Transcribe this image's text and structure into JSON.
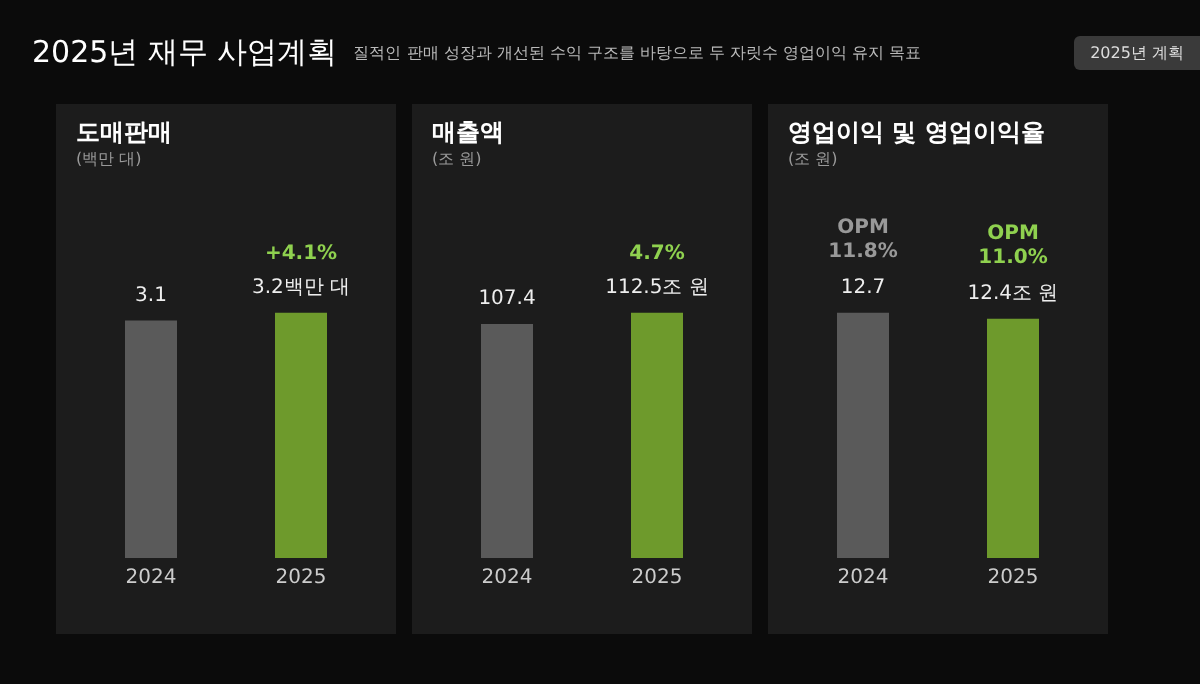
{
  "chart_data": [
    {
      "type": "bar",
      "title": "도매판매",
      "subtitle": "(백만 대)",
      "categories": [
        "2024",
        "2025"
      ],
      "values": [
        3.1,
        3.2
      ],
      "colors": [
        "#5a5a5a",
        "#6e9a2c"
      ],
      "value_labels": [
        "3.1",
        "3.2백만 대"
      ],
      "tick_labels": "x",
      "annotations": [
        "2025년 재무 사업계획",
        "질적인 판매 성장과 개선된 수익 구조를 바탕으로 두 자릿수 영업이익 유지 목표",
        "2025년 계획",
        {
          "text": "+4.1%",
          "x": "2025",
          "y": 3.2
        }
      ]
    },
    {
      "type": "bar",
      "title": "매출액",
      "subtitle": "(조 원)",
      "categories": [
        "2024",
        "2025"
      ],
      "values": [
        107.4,
        112.5
      ],
      "colors": [
        "#5a5a5a",
        "#6e9a2c"
      ],
      "value_labels": [
        "107.4",
        "112.5조 원"
      ],
      "tick_labels": "x",
      "annotations": [
        {
          "text": "4.7%",
          "x": "2025",
          "y": 112.5
        }
      ]
    },
    {
      "type": "bar",
      "title": "영업이익 및 영업이익율",
      "subtitle": "(조 원)",
      "categories": [
        "2024",
        "2025"
      ],
      "values": [
        12.7,
        12.4
      ],
      "colors": [
        "#5a5a5a",
        "#6e9a2c"
      ],
      "value_labels": [
        "12.7",
        "12.4조 원"
      ],
      "tick_labels": "x",
      "annotations": [
        {
          "text": "OPM 11.8%",
          "x": "2024",
          "y": 12.7
        },
        {
          "text": "OPM 11.0%",
          "x": "2025",
          "y": 12.4
        }
      ]
    }
  ]
}
